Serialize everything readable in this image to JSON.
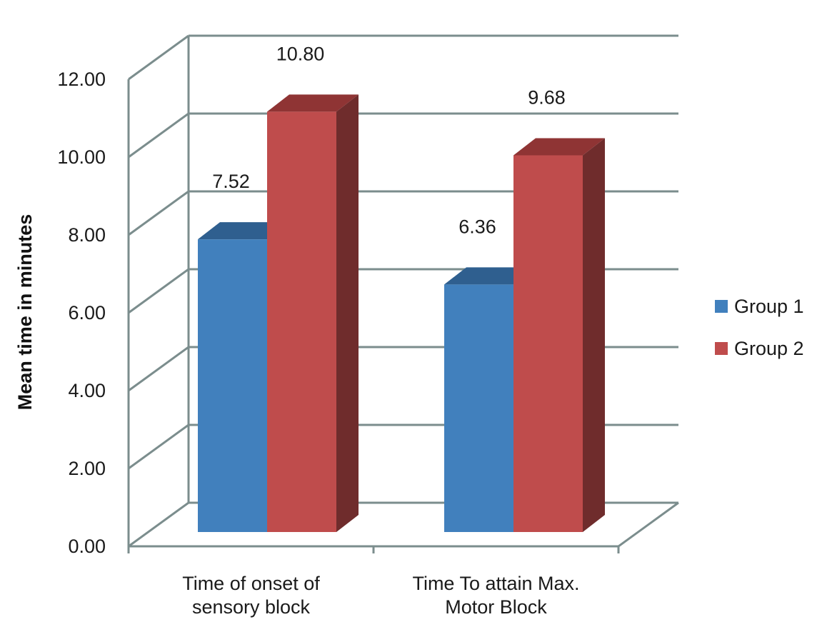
{
  "chart_data": {
    "type": "bar",
    "categories": [
      [
        "Time of onset of",
        "sensory block"
      ],
      [
        "Time To attain Max.",
        "Motor Block"
      ]
    ],
    "series": [
      {
        "name": "Group 1",
        "values": [
          7.52,
          6.36
        ],
        "color": "#4180bd",
        "top_color": "#2f5f8f",
        "side_color": "#2a5580"
      },
      {
        "name": "Group 2",
        "values": [
          10.8,
          9.68
        ],
        "color": "#bf4c4c",
        "top_color": "#8f3434",
        "side_color": "#6f2c2c"
      }
    ],
    "data_labels": [
      [
        "7.52",
        "6.36"
      ],
      [
        "10.80",
        "9.68"
      ]
    ],
    "ylabel": "Mean time in minutes",
    "yticks": [
      "0.00",
      "2.00",
      "4.00",
      "6.00",
      "8.00",
      "10.00",
      "12.00"
    ],
    "ylim": [
      0,
      12
    ],
    "grid": true,
    "legend_position": "right",
    "style": "3d-clustered-column",
    "gridline_color": "#7b8d8d"
  }
}
